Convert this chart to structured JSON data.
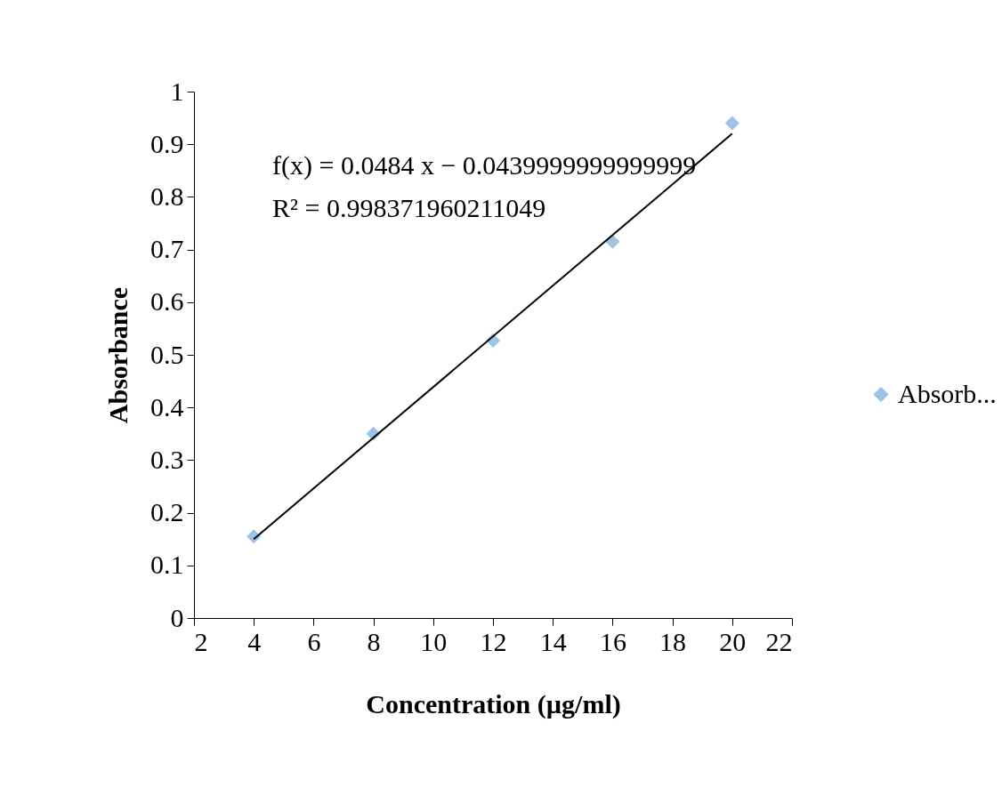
{
  "chart_data": {
    "type": "scatter",
    "xlabel": "Concentration (µg/ml)",
    "ylabel": "Absorbance",
    "x": [
      4,
      8,
      12,
      16,
      20
    ],
    "series": [
      {
        "name": "Absorb...",
        "color": "#9dc3e6",
        "values": [
          0.155,
          0.35,
          0.527,
          0.715,
          0.94
        ]
      },
      {
        "type": "line",
        "marker": "none",
        "color": "#000000",
        "x": [
          4,
          20
        ],
        "values": [
          0.15,
          0.92
        ]
      }
    ],
    "xlim": [
      2,
      22
    ],
    "xticks": [
      2,
      4,
      6,
      8,
      10,
      12,
      14,
      16,
      18,
      20,
      22
    ],
    "ylim": [
      0,
      1
    ],
    "yticks": [
      0,
      0.1,
      0.2,
      0.3,
      0.4,
      0.5,
      0.6,
      0.7,
      0.8,
      0.9,
      1
    ],
    "annotations": [
      "f(x) = 0.0484 x − 0.0439999999999999",
      "R² = 0.998371960211049"
    ],
    "marker": "diamond",
    "legend": "right"
  }
}
